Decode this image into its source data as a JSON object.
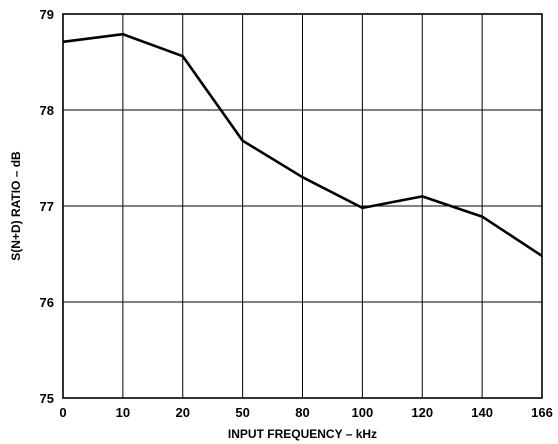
{
  "chart_data": {
    "type": "line",
    "title": "",
    "xlabel": "INPUT FREQUENCY – kHz",
    "ylabel": "S(N+D) RATIO – dB",
    "x_categories": [
      "0",
      "10",
      "20",
      "50",
      "80",
      "100",
      "120",
      "140",
      "166"
    ],
    "y_ticks": [
      "75",
      "76",
      "77",
      "78",
      "79"
    ],
    "ylim": [
      75,
      79
    ],
    "grid": true,
    "series": [
      {
        "values": [
          78.71,
          78.79,
          78.56,
          77.68,
          77.3,
          76.98,
          77.1,
          76.89,
          76.48
        ]
      }
    ]
  }
}
